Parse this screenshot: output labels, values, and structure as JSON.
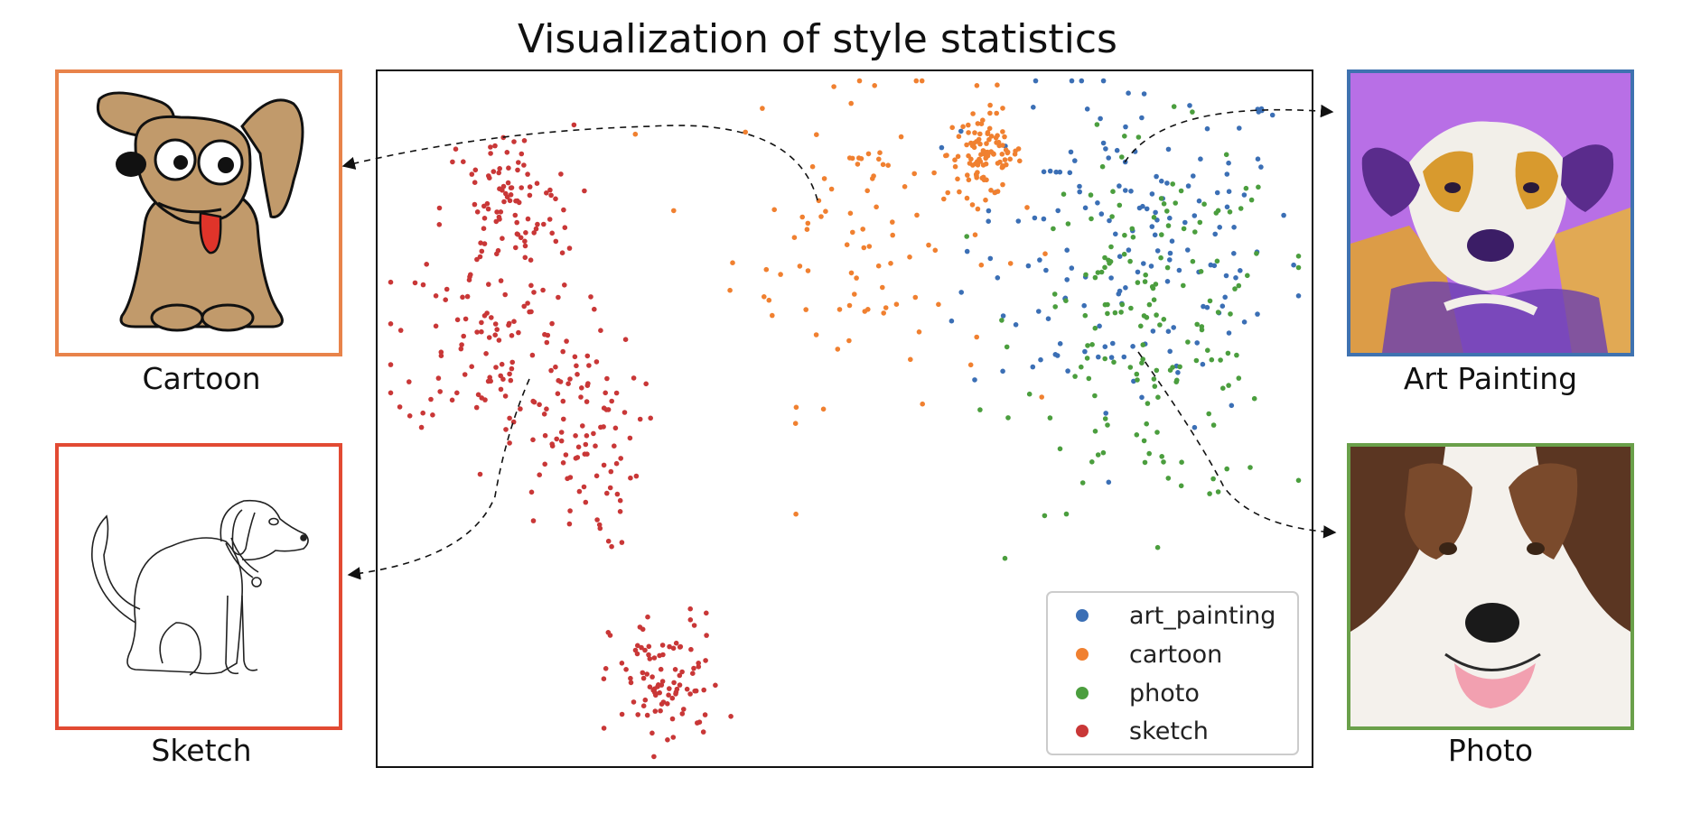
{
  "title": "Visualization of style statistics",
  "chart_data": {
    "type": "scatter",
    "title": "Visualization of style statistics",
    "xlabel": "",
    "ylabel": "",
    "axes_ticks": false,
    "legend": {
      "placement": "bottom-right",
      "entries": [
        "art_painting",
        "cartoon",
        "photo",
        "sketch"
      ]
    },
    "series": [
      {
        "name": "art_painting",
        "color": "#3b6fb5",
        "n_points": 170,
        "clusters": [
          {
            "cx": 0.81,
            "cy": 0.75,
            "sx": 0.09,
            "sy": 0.13
          }
        ]
      },
      {
        "name": "cartoon",
        "color": "#f08030",
        "n_points": 200,
        "clusters": [
          {
            "cx": 0.52,
            "cy": 0.77,
            "sx": 0.07,
            "sy": 0.12
          },
          {
            "cx": 0.65,
            "cy": 0.88,
            "sx": 0.02,
            "sy": 0.03
          }
        ]
      },
      {
        "name": "photo",
        "color": "#4b9e3e",
        "n_points": 170,
        "clusters": [
          {
            "cx": 0.83,
            "cy": 0.63,
            "sx": 0.07,
            "sy": 0.13
          }
        ]
      },
      {
        "name": "sketch",
        "color": "#c93737",
        "n_points": 380,
        "clusters": [
          {
            "cx": 0.14,
            "cy": 0.8,
            "sx": 0.035,
            "sy": 0.06
          },
          {
            "cx": 0.12,
            "cy": 0.62,
            "sx": 0.05,
            "sy": 0.07
          },
          {
            "cx": 0.21,
            "cy": 0.47,
            "sx": 0.035,
            "sy": 0.08
          },
          {
            "cx": 0.31,
            "cy": 0.12,
            "sx": 0.03,
            "sy": 0.05
          }
        ]
      }
    ]
  },
  "panels": [
    {
      "label": "Cartoon",
      "image": "cartoon-dog-drawing",
      "border_color": "#e8834a"
    },
    {
      "label": "Sketch",
      "image": "sketch-dog-line-drawing",
      "border_color": "#e24a33"
    },
    {
      "label": "Art Painting",
      "image": "painted-dog-portrait",
      "border_color": "#3f72b0"
    },
    {
      "label": "Photo",
      "image": "photo-dog-face",
      "border_color": "#6aa04a"
    }
  ]
}
